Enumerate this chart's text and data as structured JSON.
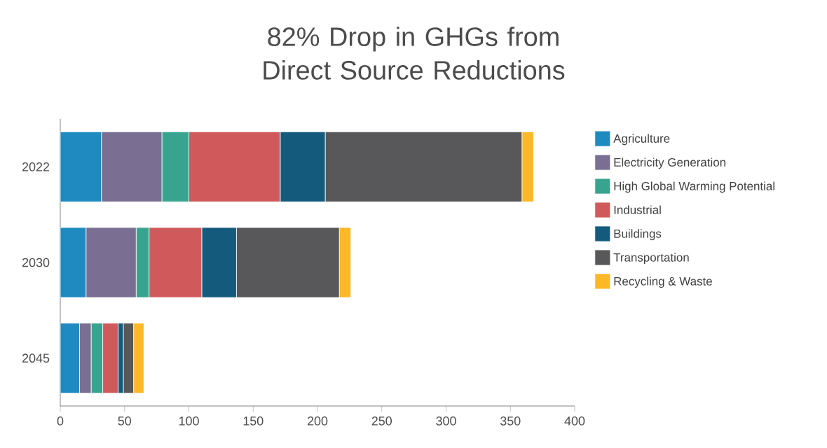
{
  "chart_data": {
    "type": "bar",
    "orientation": "horizontal",
    "stacked": true,
    "title": "82% Drop in GHGs from Direct Source Reductions",
    "categories": [
      "2022",
      "2030",
      "2045"
    ],
    "series": [
      {
        "name": "Agriculture",
        "color": "#1f8ac0",
        "values": [
          32,
          20,
          15
        ]
      },
      {
        "name": "Electricity Generation",
        "color": "#7a6f92",
        "values": [
          47,
          39,
          9
        ]
      },
      {
        "name": "High Global Warming Potential",
        "color": "#38a48f",
        "values": [
          21,
          10,
          9
        ]
      },
      {
        "name": "Industrial",
        "color": "#d05a5b",
        "values": [
          71,
          41,
          12
        ]
      },
      {
        "name": "Buildings",
        "color": "#145a7d",
        "values": [
          35,
          27,
          4
        ]
      },
      {
        "name": "Transportation",
        "color": "#58585a",
        "values": [
          153,
          80,
          8
        ]
      },
      {
        "name": "Recycling & Waste",
        "color": "#fdb827",
        "values": [
          9,
          9,
          8
        ]
      }
    ],
    "xlim": [
      0,
      400
    ],
    "xticks": [
      0,
      50,
      100,
      150,
      200,
      250,
      300,
      350,
      400
    ],
    "legend": "right"
  }
}
